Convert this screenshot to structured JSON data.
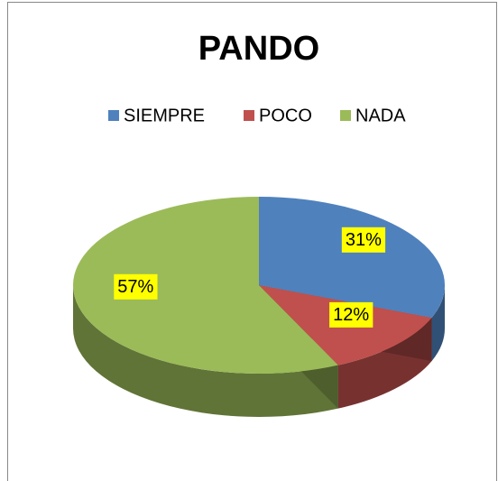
{
  "chart_data": {
    "type": "pie3d",
    "title": "PANDO",
    "categories": [
      "SIEMPRE",
      "POCO",
      "NADA"
    ],
    "values": [
      31,
      12,
      57
    ],
    "value_labels": [
      "31%",
      "12%",
      "57%"
    ],
    "colors": [
      "#4f81bd",
      "#c0504d",
      "#9bbb59"
    ],
    "legend": "top"
  }
}
